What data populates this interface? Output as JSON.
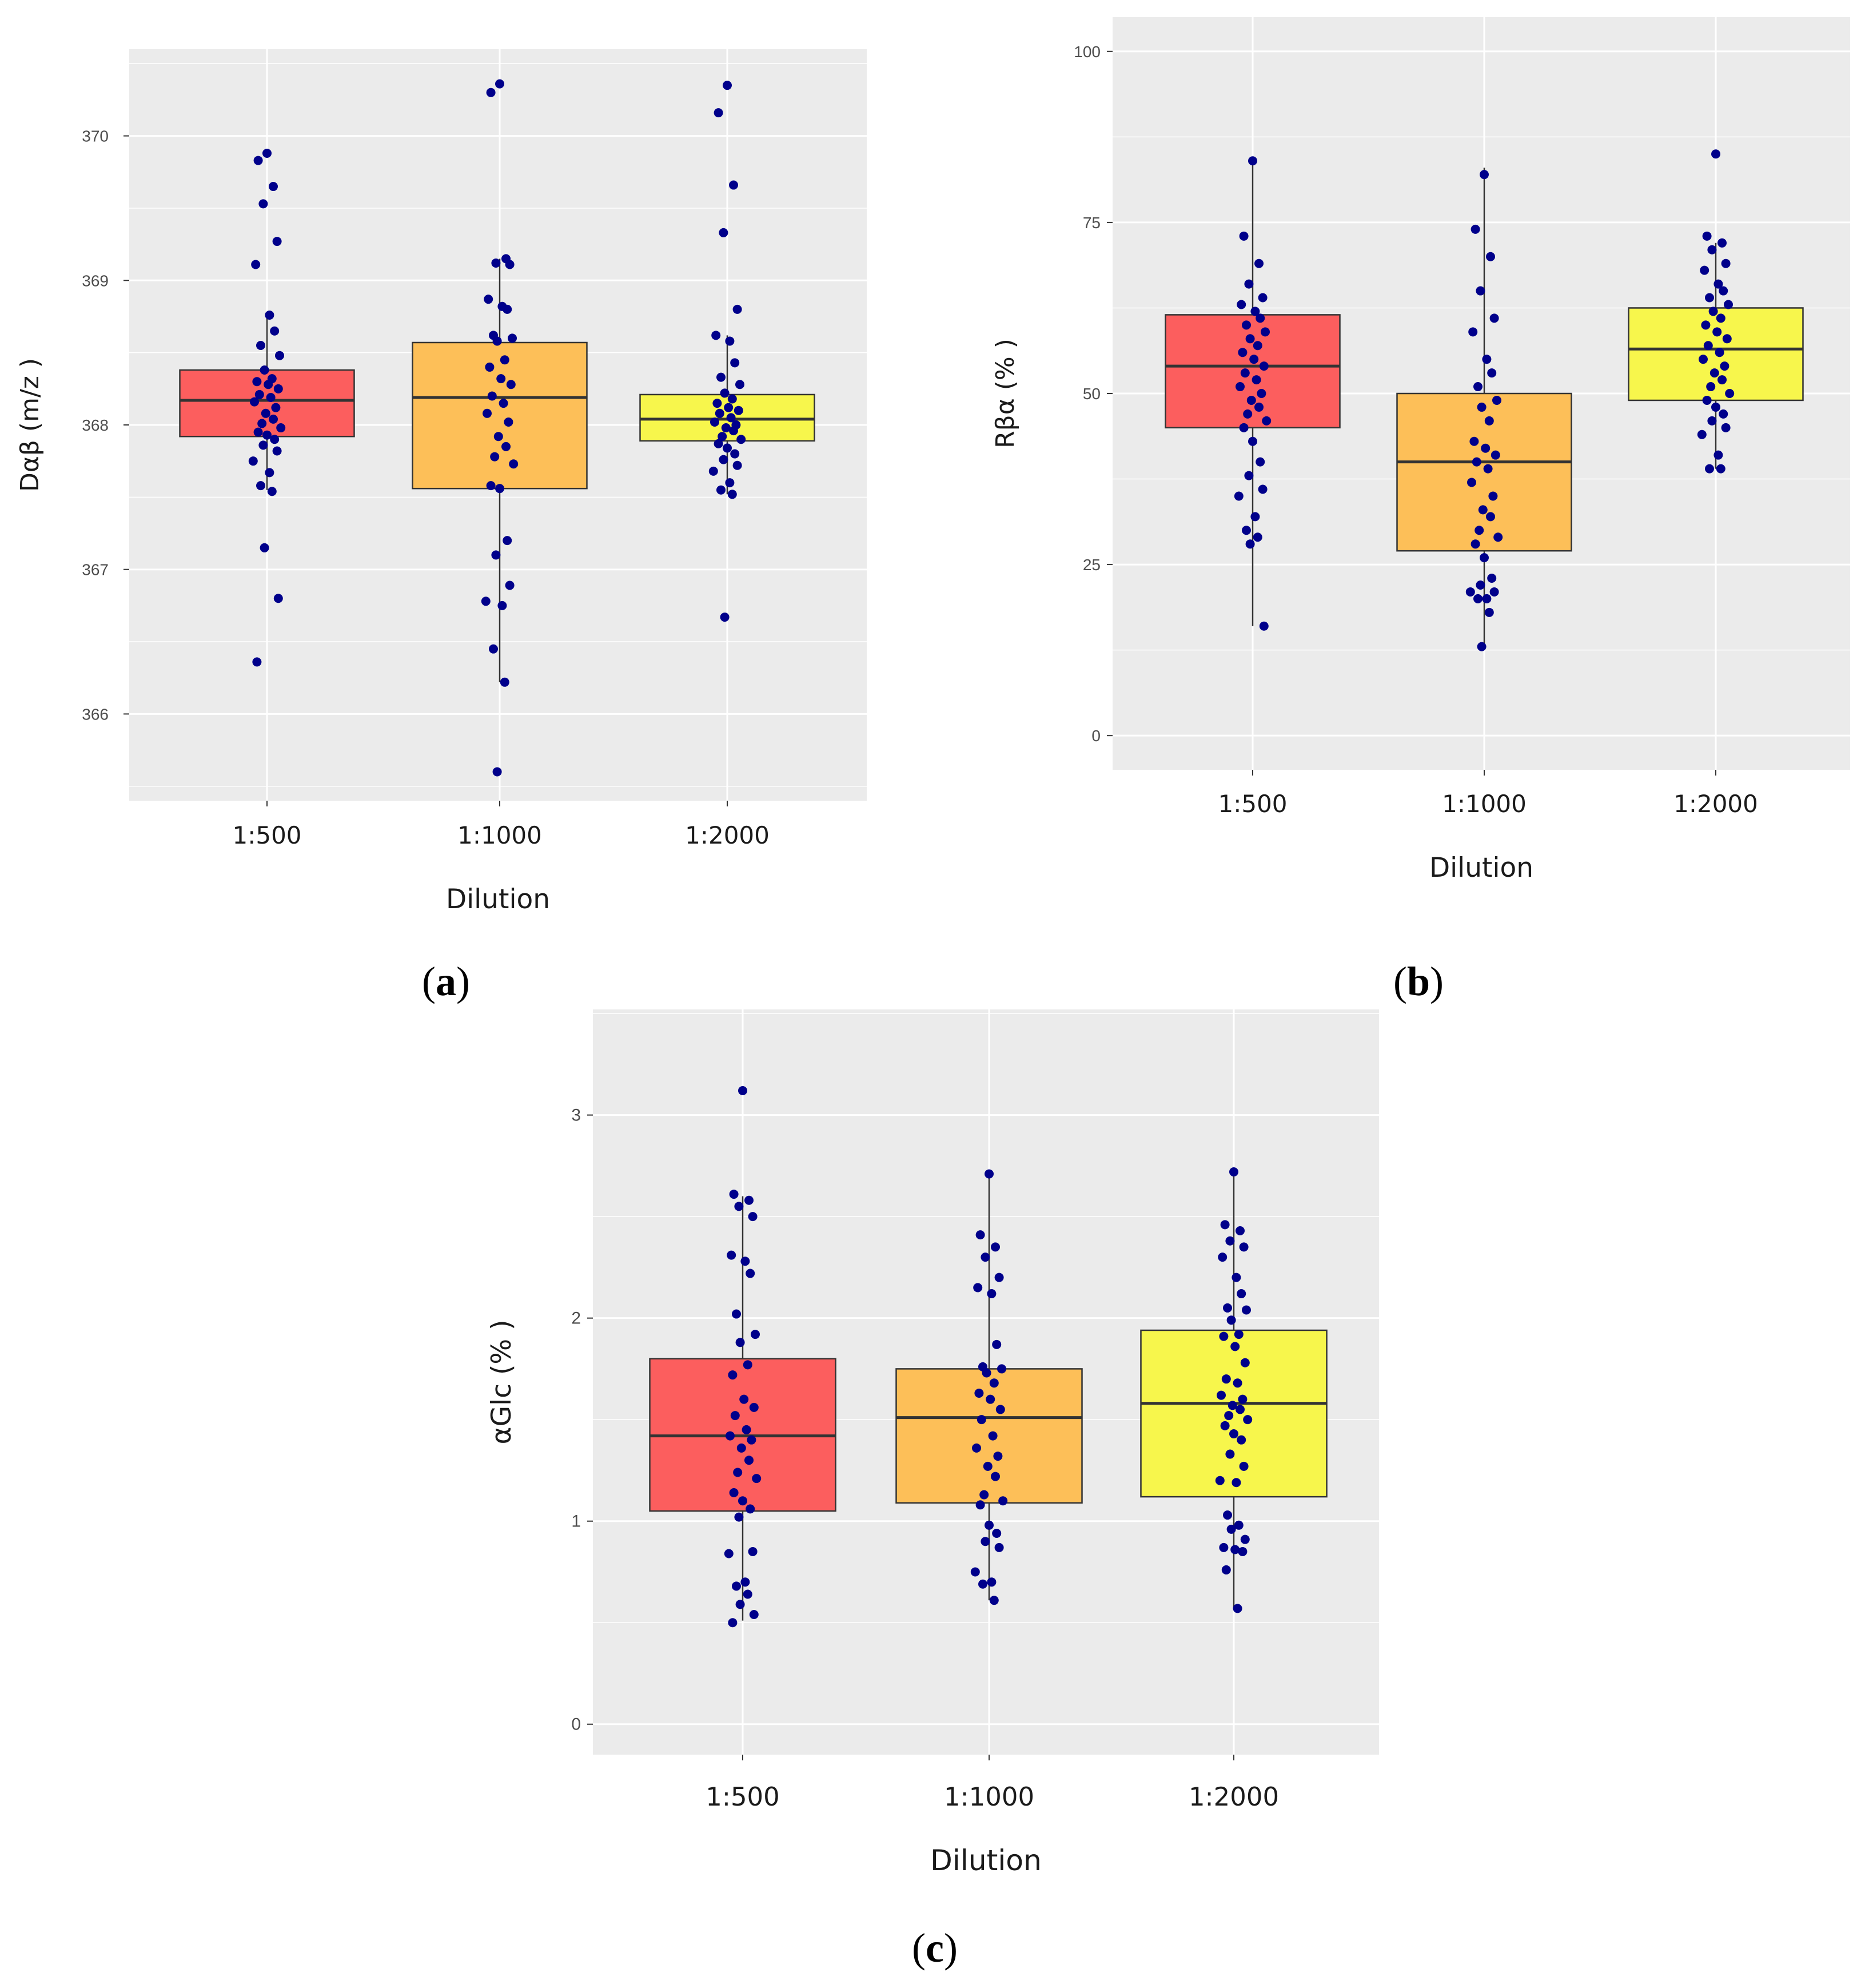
{
  "chart_data": [
    {
      "type": "boxplot",
      "panel_label": "a",
      "xlabel": "Dilution",
      "ylabel": "Dαβ (m/z )",
      "ylim": [
        365.4,
        370.6
      ],
      "yticks": [
        366,
        367,
        368,
        369,
        370
      ],
      "ytick_labels": [
        "366",
        "367",
        "368",
        "369",
        "370"
      ],
      "categories": [
        "1:500",
        "1:1000",
        "1:2000"
      ],
      "colors": [
        "#fc5e5e",
        "#fdbf58",
        "#f7f64c"
      ],
      "point_color": "#00008b",
      "boxes": [
        {
          "category": "1:500",
          "whisker_low": 367.55,
          "q1": 367.92,
          "median": 368.17,
          "q3": 368.38,
          "whisker_high": 368.76
        },
        {
          "category": "1:1000",
          "whisker_low": 366.22,
          "q1": 367.56,
          "median": 368.19,
          "q3": 368.57,
          "whisker_high": 369.15
        },
        {
          "category": "1:2000",
          "whisker_low": 367.52,
          "q1": 367.89,
          "median": 368.04,
          "q3": 368.21,
          "whisker_high": 368.62
        }
      ],
      "points": [
        [
          369.88,
          369.83,
          369.65,
          369.53,
          369.27,
          369.11,
          368.76,
          368.65,
          368.55,
          368.48,
          368.38,
          368.32,
          368.3,
          368.28,
          368.25,
          368.21,
          368.19,
          368.16,
          368.12,
          368.08,
          368.04,
          368.01,
          367.98,
          367.95,
          367.93,
          367.9,
          367.86,
          367.82,
          367.75,
          367.67,
          367.58,
          367.54,
          367.15,
          366.8,
          366.36
        ],
        [
          370.36,
          370.3,
          369.15,
          369.12,
          369.11,
          368.87,
          368.82,
          368.8,
          368.62,
          368.6,
          368.58,
          368.45,
          368.4,
          368.32,
          368.28,
          368.2,
          368.15,
          368.08,
          368.02,
          367.92,
          367.85,
          367.78,
          367.73,
          367.58,
          367.56,
          367.2,
          367.1,
          366.89,
          366.78,
          366.75,
          366.45,
          366.22,
          365.6
        ],
        [
          370.35,
          370.16,
          369.66,
          369.33,
          368.8,
          368.62,
          368.58,
          368.43,
          368.33,
          368.28,
          368.22,
          368.18,
          368.15,
          368.12,
          368.1,
          368.08,
          368.05,
          368.02,
          368.0,
          367.98,
          367.96,
          367.92,
          367.9,
          367.87,
          367.84,
          367.8,
          367.76,
          367.72,
          367.68,
          367.6,
          367.55,
          367.52,
          366.67
        ]
      ]
    },
    {
      "type": "boxplot",
      "panel_label": "b",
      "xlabel": "Dilution",
      "ylabel": "Rβα (% )",
      "ylim": [
        -5,
        105
      ],
      "yticks": [
        0,
        25,
        50,
        75,
        100
      ],
      "ytick_labels": [
        "0",
        "25",
        "50",
        "75",
        "100"
      ],
      "categories": [
        "1:500",
        "1:1000",
        "1:2000"
      ],
      "colors": [
        "#fc5e5e",
        "#fdbf58",
        "#f7f64c"
      ],
      "point_color": "#00008b",
      "boxes": [
        {
          "category": "1:500",
          "whisker_low": 16,
          "q1": 45,
          "median": 54,
          "q3": 61.5,
          "whisker_high": 84
        },
        {
          "category": "1:1000",
          "whisker_low": 13,
          "q1": 27,
          "median": 40,
          "q3": 50,
          "whisker_high": 83
        },
        {
          "category": "1:2000",
          "whisker_low": 39,
          "q1": 49,
          "median": 56.5,
          "q3": 62.5,
          "whisker_high": 72
        }
      ],
      "points": [
        [
          84,
          73,
          69,
          66,
          64,
          63,
          62,
          61,
          60,
          59,
          58,
          57,
          56,
          55,
          54,
          53,
          52,
          51,
          50,
          49,
          48,
          47,
          46,
          45,
          43,
          40,
          38,
          36,
          35,
          32,
          30,
          29,
          28,
          16
        ],
        [
          82,
          74,
          70,
          65,
          61,
          59,
          55,
          53,
          51,
          49,
          48,
          46,
          43,
          42,
          41,
          40,
          39,
          37,
          35,
          33,
          32,
          30,
          29,
          28,
          26,
          23,
          22,
          21,
          21,
          20,
          20,
          18,
          13
        ],
        [
          85,
          73,
          72,
          71,
          69,
          68,
          66,
          65,
          64,
          63,
          62,
          61,
          60,
          59,
          58,
          57,
          56,
          55,
          54,
          53,
          52,
          51,
          50,
          49,
          48,
          47,
          46,
          45,
          44,
          41,
          39,
          39
        ]
      ]
    },
    {
      "type": "boxplot",
      "panel_label": "c",
      "xlabel": "Dilution",
      "ylabel": "αGlc (% )",
      "ylim": [
        -0.15,
        3.52
      ],
      "yticks": [
        0,
        1,
        2,
        3
      ],
      "ytick_labels": [
        "0",
        "1",
        "2",
        "3"
      ],
      "categories": [
        "1:500",
        "1:1000",
        "1:2000"
      ],
      "colors": [
        "#fc5e5e",
        "#fdbf58",
        "#f7f64c"
      ],
      "point_color": "#00008b",
      "boxes": [
        {
          "category": "1:500",
          "whisker_low": 0.51,
          "q1": 1.05,
          "median": 1.42,
          "q3": 1.8,
          "whisker_high": 2.6
        },
        {
          "category": "1:1000",
          "whisker_low": 0.61,
          "q1": 1.09,
          "median": 1.51,
          "q3": 1.75,
          "whisker_high": 2.71
        },
        {
          "category": "1:2000",
          "whisker_low": 0.57,
          "q1": 1.12,
          "median": 1.58,
          "q3": 1.94,
          "whisker_high": 2.72
        }
      ],
      "points": [
        [
          3.12,
          2.61,
          2.58,
          2.55,
          2.5,
          2.31,
          2.28,
          2.22,
          2.02,
          1.92,
          1.88,
          1.77,
          1.72,
          1.6,
          1.56,
          1.52,
          1.45,
          1.42,
          1.4,
          1.36,
          1.3,
          1.24,
          1.21,
          1.14,
          1.1,
          1.06,
          1.02,
          0.85,
          0.84,
          0.7,
          0.68,
          0.64,
          0.59,
          0.54,
          0.5
        ],
        [
          2.71,
          2.41,
          2.35,
          2.3,
          2.2,
          2.15,
          2.12,
          1.87,
          1.76,
          1.75,
          1.73,
          1.68,
          1.63,
          1.6,
          1.55,
          1.5,
          1.42,
          1.36,
          1.32,
          1.27,
          1.22,
          1.13,
          1.1,
          1.08,
          0.98,
          0.94,
          0.9,
          0.87,
          0.75,
          0.7,
          0.69,
          0.61
        ],
        [
          2.72,
          2.46,
          2.43,
          2.38,
          2.35,
          2.3,
          2.2,
          2.12,
          2.05,
          2.04,
          1.99,
          1.92,
          1.91,
          1.86,
          1.78,
          1.7,
          1.68,
          1.62,
          1.6,
          1.57,
          1.55,
          1.52,
          1.5,
          1.47,
          1.43,
          1.4,
          1.33,
          1.27,
          1.2,
          1.19,
          1.03,
          0.98,
          0.96,
          0.91,
          0.87,
          0.86,
          0.85,
          0.76,
          0.57
        ]
      ]
    }
  ]
}
